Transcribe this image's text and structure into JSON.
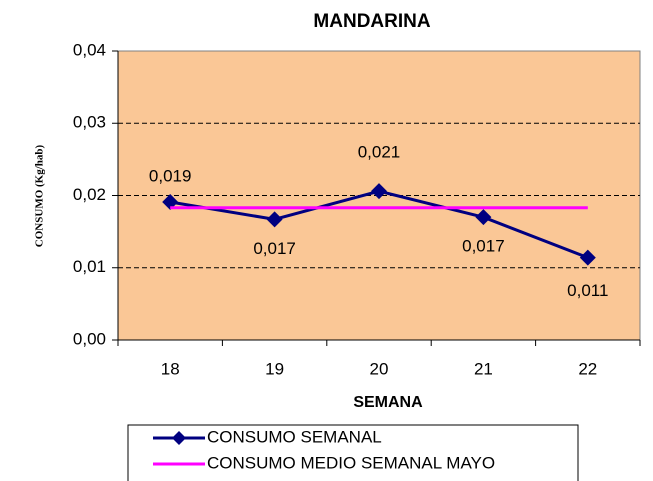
{
  "chart_data": {
    "type": "line",
    "title": "MANDARINA",
    "x_label": "SEMANA",
    "y_label": "CONSUMO  (Kg/hab)",
    "categories": [
      "18",
      "19",
      "20",
      "21",
      "22"
    ],
    "series": [
      {
        "name": "CONSUMO SEMANAL",
        "color": "#000080",
        "values": [
          0.0191,
          0.0167,
          0.0206,
          0.017,
          0.0114
        ],
        "value_labels": [
          "0,019",
          "0,017",
          "0,021",
          "0,017",
          "0,011"
        ],
        "marker": "diamond"
      },
      {
        "name": "CONSUMO MEDIO SEMANAL MAYO",
        "color": "#ff00ff",
        "values": [
          0.0183,
          0.0183,
          0.0183,
          0.0183,
          0.0183
        ]
      }
    ],
    "ylim": [
      0,
      0.04
    ],
    "yticks": [
      {
        "value": 0,
        "label": "0,00"
      },
      {
        "value": 0.01,
        "label": "0,01"
      },
      {
        "value": 0.02,
        "label": "0,02"
      },
      {
        "value": 0.03,
        "label": "0,03"
      },
      {
        "value": 0.04,
        "label": "0,04"
      }
    ],
    "grid": true,
    "plot_background": "#fac796",
    "legend": "bottom"
  }
}
